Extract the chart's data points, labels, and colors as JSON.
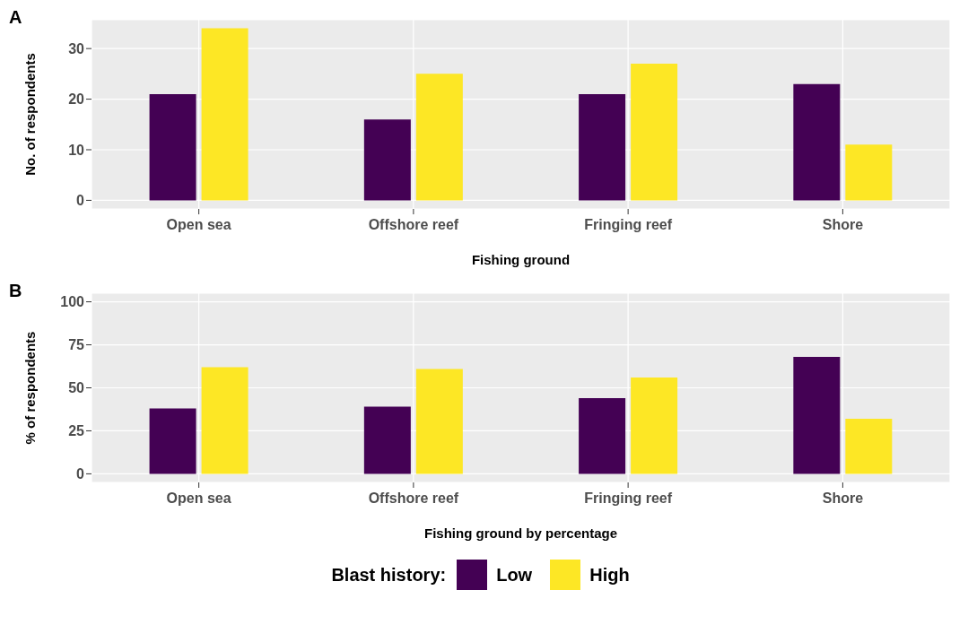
{
  "chart_data": [
    {
      "type": "bar",
      "title": "A",
      "xlabel": "Fishing ground",
      "ylabel": "No. of respondents",
      "categories": [
        "Open sea",
        "Offshore reef",
        "Fringing reef",
        "Shore"
      ],
      "series": [
        {
          "color": "#440154",
          "values": [
            21,
            16,
            21,
            23
          ]
        },
        {
          "color": "#fde725",
          "values": [
            34,
            25,
            27,
            11
          ]
        }
      ],
      "ylim": [
        -1.7,
        35.7
      ],
      "yticks": [
        0,
        10,
        20,
        30
      ],
      "grid": true
    },
    {
      "type": "bar",
      "title": "B",
      "xlabel": "Fishing ground by percentage",
      "ylabel": "% of respondents",
      "categories": [
        "Open sea",
        "Offshore reef",
        "Fringing reef",
        "Shore"
      ],
      "series": [
        {
          "name": "Low",
          "color": "#440154",
          "values": [
            38,
            39,
            44,
            68
          ]
        },
        {
          "name": "High",
          "color": "#fde725",
          "values": [
            62,
            61,
            56,
            32
          ]
        }
      ],
      "ylim": [
        -5,
        105
      ],
      "yticks": [
        0,
        25,
        50,
        75,
        100
      ],
      "grid": true,
      "legend": "bottom",
      "legend_title": "Blast history:"
    }
  ]
}
